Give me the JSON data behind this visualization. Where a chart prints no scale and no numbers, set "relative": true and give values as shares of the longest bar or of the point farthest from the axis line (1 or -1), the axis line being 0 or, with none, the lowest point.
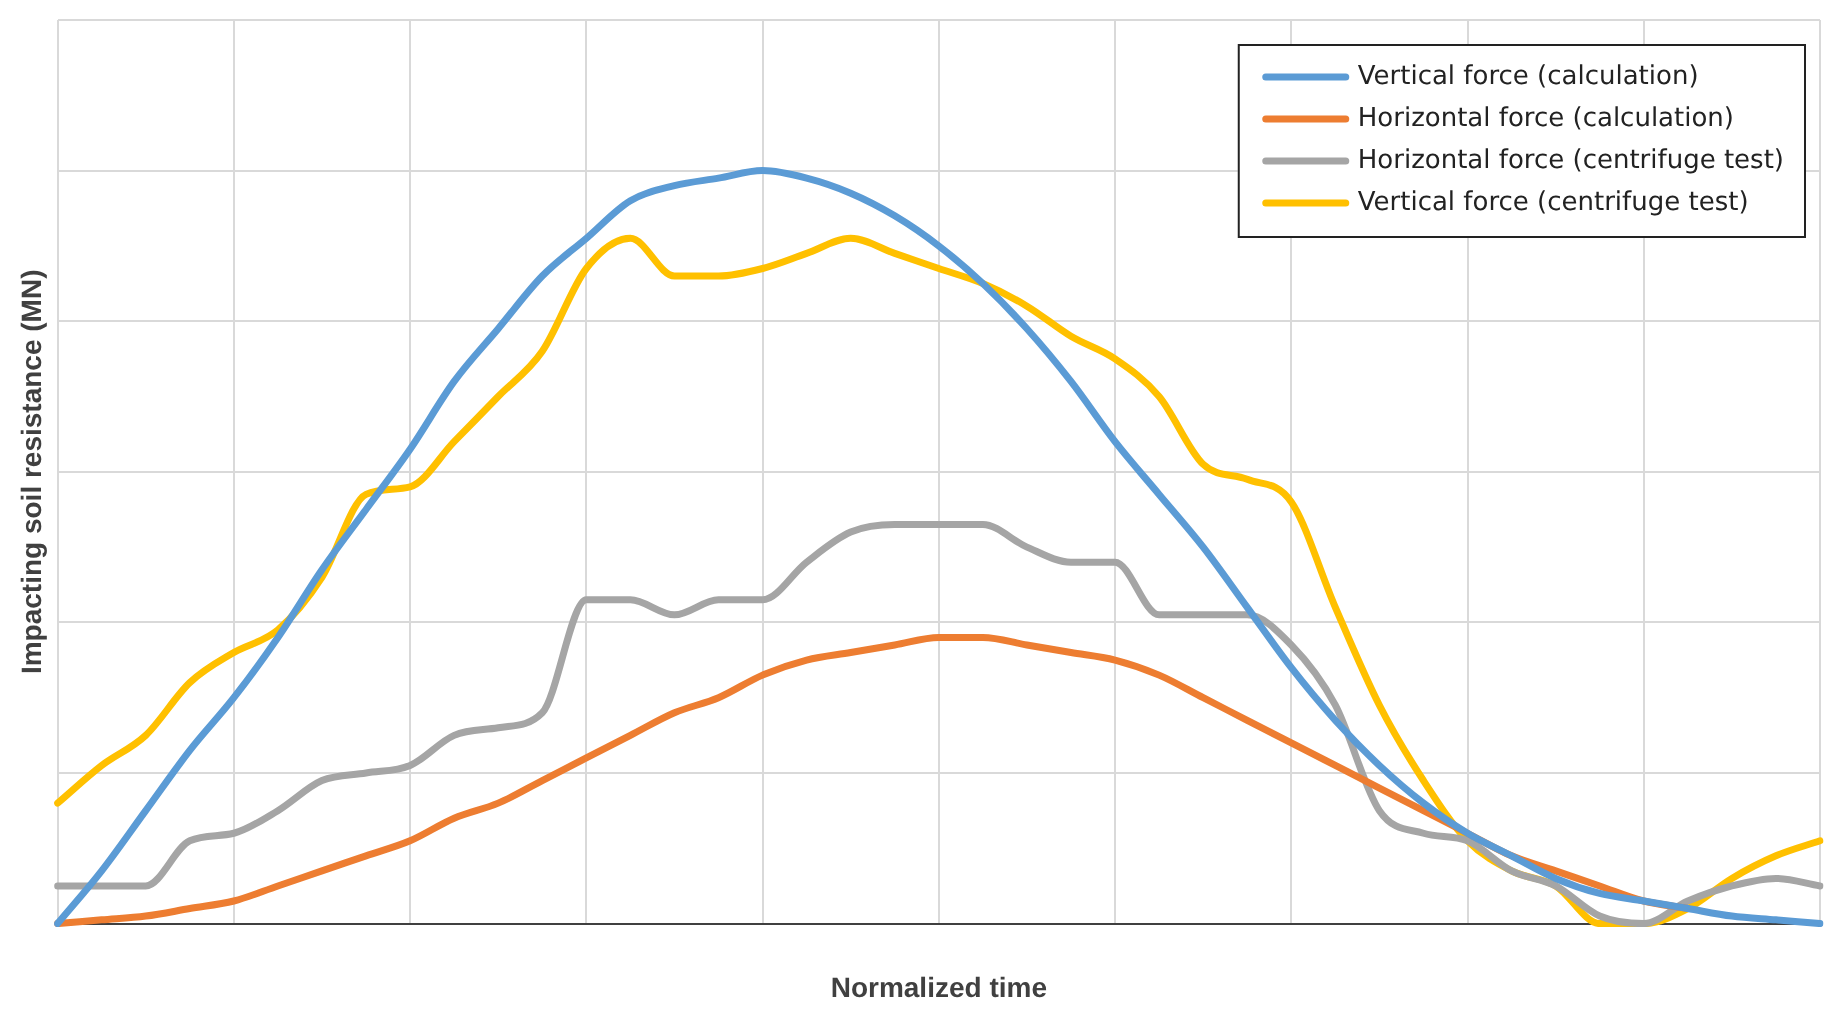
{
  "chart_data": {
    "type": "line",
    "relative": true,
    "xlabel": "Normalized time",
    "ylabel": "Impacting soil resistance (MN)",
    "grid": true,
    "legend": "top right",
    "marker": "none",
    "line_style": "solid",
    "categories": [
      null,
      null,
      null,
      null,
      null,
      null,
      null,
      null,
      null,
      null,
      null,
      null,
      null,
      null,
      null,
      null,
      null,
      null,
      null,
      null,
      null,
      null,
      null,
      null,
      null,
      null,
      null,
      null,
      null,
      null,
      null,
      null,
      null,
      null,
      null,
      null,
      null,
      null,
      null,
      null,
      null
    ],
    "series": [
      {
        "name": "Vertical force (calculation)",
        "color": "#5b9bd5",
        "values": [
          0,
          0.07,
          0.15,
          0.23,
          0.3,
          0.38,
          0.47,
          0.55,
          0.63,
          0.72,
          0.79,
          0.86,
          0.91,
          0.96,
          0.98,
          0.99,
          1,
          0.99,
          0.97,
          0.94,
          0.9,
          0.85,
          0.79,
          0.72,
          0.64,
          0.57,
          0.5,
          0.42,
          0.34,
          0.27,
          0.21,
          0.16,
          0.12,
          0.09,
          0.06,
          0.04,
          0.03,
          0.02,
          0.01,
          0.005,
          0
        ]
      },
      {
        "name": "Horizontal force (calculation)",
        "color": "#ed7d31",
        "values": [
          0,
          0.005,
          0.01,
          0.02,
          0.03,
          0.05,
          0.07,
          0.09,
          0.11,
          0.14,
          0.16,
          0.19,
          0.22,
          0.25,
          0.28,
          0.3,
          0.33,
          0.35,
          0.36,
          0.37,
          0.38,
          0.38,
          0.37,
          0.36,
          0.35,
          0.33,
          0.3,
          0.27,
          0.24,
          0.21,
          0.18,
          0.15,
          0.12,
          0.09,
          0.07,
          0.05,
          0.03,
          0.02,
          null,
          null,
          null
        ]
      },
      {
        "name": "Horizontal force (centrifuge test)",
        "color": "#a5a5a5",
        "values": [
          0.05,
          0.05,
          0.05,
          0.11,
          0.12,
          0.15,
          0.19,
          0.2,
          0.21,
          0.25,
          0.26,
          0.28,
          0.43,
          0.43,
          0.41,
          0.43,
          0.43,
          0.48,
          0.52,
          0.53,
          0.53,
          0.53,
          0.5,
          0.48,
          0.48,
          0.41,
          0.41,
          0.41,
          0.37,
          0.29,
          0.15,
          0.12,
          0.11,
          0.07,
          0.05,
          0.01,
          0,
          0.03,
          0.05,
          0.06,
          0.05
        ]
      },
      {
        "name": "Vertical force (centrifuge test)",
        "color": "#ffc000",
        "values": [
          0.16,
          0.21,
          0.25,
          0.32,
          0.36,
          0.39,
          0.46,
          0.57,
          0.58,
          0.64,
          0.7,
          0.76,
          0.87,
          0.91,
          0.86,
          0.86,
          0.87,
          0.89,
          0.91,
          0.89,
          0.87,
          0.85,
          0.82,
          0.78,
          0.75,
          0.7,
          0.61,
          0.59,
          0.56,
          0.42,
          0.29,
          0.19,
          0.11,
          0.07,
          0.05,
          0,
          0,
          0.02,
          0.06,
          0.09,
          0.11
        ]
      }
    ]
  }
}
